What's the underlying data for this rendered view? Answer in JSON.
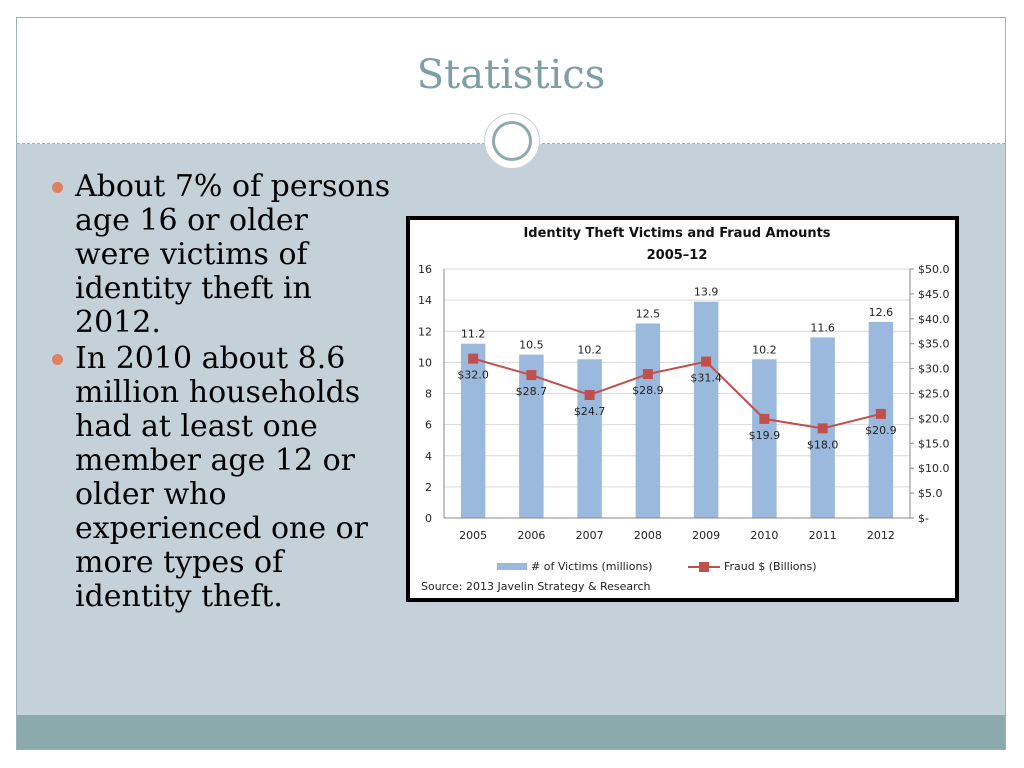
{
  "slide": {
    "title": "Statistics",
    "bullets": [
      "About 7% of persons age 16 or older were victims of identity theft in 2012.",
      "In 2010 about 8.6 million households had at least one member age 12 or older who experienced one or more types of identity theft."
    ]
  },
  "colors": {
    "title": "#7e9ea3",
    "bullet": "#e0805f",
    "bar": "#9bb9dd",
    "line": "#c0504d",
    "content_bg": "#c4d1d8",
    "footer_bar": "#8aaaab"
  },
  "chart_data": {
    "type": "bar",
    "title": "Identity Theft Victims and Fraud Amounts",
    "subtitle": "2005–12",
    "categories": [
      "2005",
      "2006",
      "2007",
      "2008",
      "2009",
      "2010",
      "2011",
      "2012"
    ],
    "series": [
      {
        "name": "# of Victims (millions)",
        "type": "bar",
        "axis": "left",
        "values": [
          11.2,
          10.5,
          10.2,
          12.5,
          13.9,
          10.2,
          11.6,
          12.6
        ],
        "labels": [
          "11.2",
          "10.5",
          "10.2",
          "12.5",
          "13.9",
          "10.2",
          "11.6",
          "12.6"
        ]
      },
      {
        "name": "Fraud $ (Billions)",
        "type": "line",
        "axis": "right",
        "values": [
          32.0,
          28.7,
          24.7,
          28.9,
          31.4,
          19.9,
          18.0,
          20.9
        ],
        "labels": [
          "$32.0",
          "$28.7",
          "$24.7",
          "$28.9",
          "$31.4",
          "$19.9",
          "$18.0",
          "$20.9"
        ]
      }
    ],
    "ylim": [
      0,
      16
    ],
    "y_ticks": [
      "0",
      "2",
      "4",
      "6",
      "8",
      "10",
      "12",
      "14",
      "16"
    ],
    "y2lim": [
      0,
      50
    ],
    "y2_ticks": [
      "$-",
      "$5.0",
      "$10.0",
      "$15.0",
      "$20.0",
      "$25.0",
      "$30.0",
      "$35.0",
      "$40.0",
      "$45.0",
      "$50.0"
    ],
    "grid": true,
    "legend_position": "bottom",
    "source": "Source: 2013 Javelin Strategy & Research"
  }
}
